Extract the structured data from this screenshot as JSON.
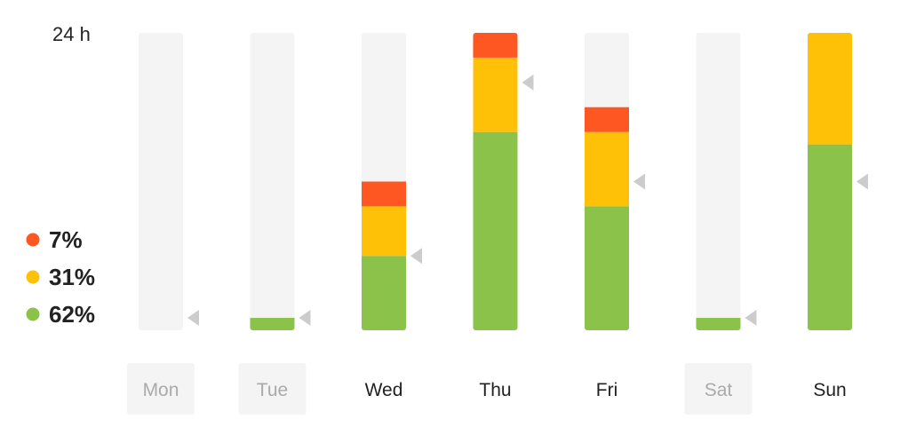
{
  "chart_data": {
    "type": "bar",
    "stacked": true,
    "y_max_label": "24 h",
    "ylim": [
      0,
      24
    ],
    "categories": [
      "Mon",
      "Tue",
      "Wed",
      "Thu",
      "Fri",
      "Sat",
      "Sun"
    ],
    "inactive_days": [
      "Mon",
      "Tue",
      "Sat"
    ],
    "series": [
      {
        "color": "#8bc34a",
        "values": [
          0,
          1,
          6,
          16,
          10,
          1,
          15
        ]
      },
      {
        "color": "#ffc107",
        "values": [
          0,
          0,
          4,
          6,
          6,
          0,
          9
        ]
      },
      {
        "color": "#ff5722",
        "values": [
          0,
          0,
          2,
          2,
          2,
          0,
          0
        ]
      }
    ],
    "marker_values": [
      1,
      1,
      6,
      20,
      12,
      1,
      12
    ],
    "legend": [
      {
        "color": "#ff5722",
        "label": "7%"
      },
      {
        "color": "#ffc107",
        "label": "31%"
      },
      {
        "color": "#8bc34a",
        "label": "62%"
      }
    ],
    "colors": {
      "track": "#f4f4f4",
      "marker": "#cccccc",
      "inactive_chip_bg": "#f4f4f4",
      "inactive_text": "#aaaaaa",
      "active_text": "#222222"
    }
  }
}
